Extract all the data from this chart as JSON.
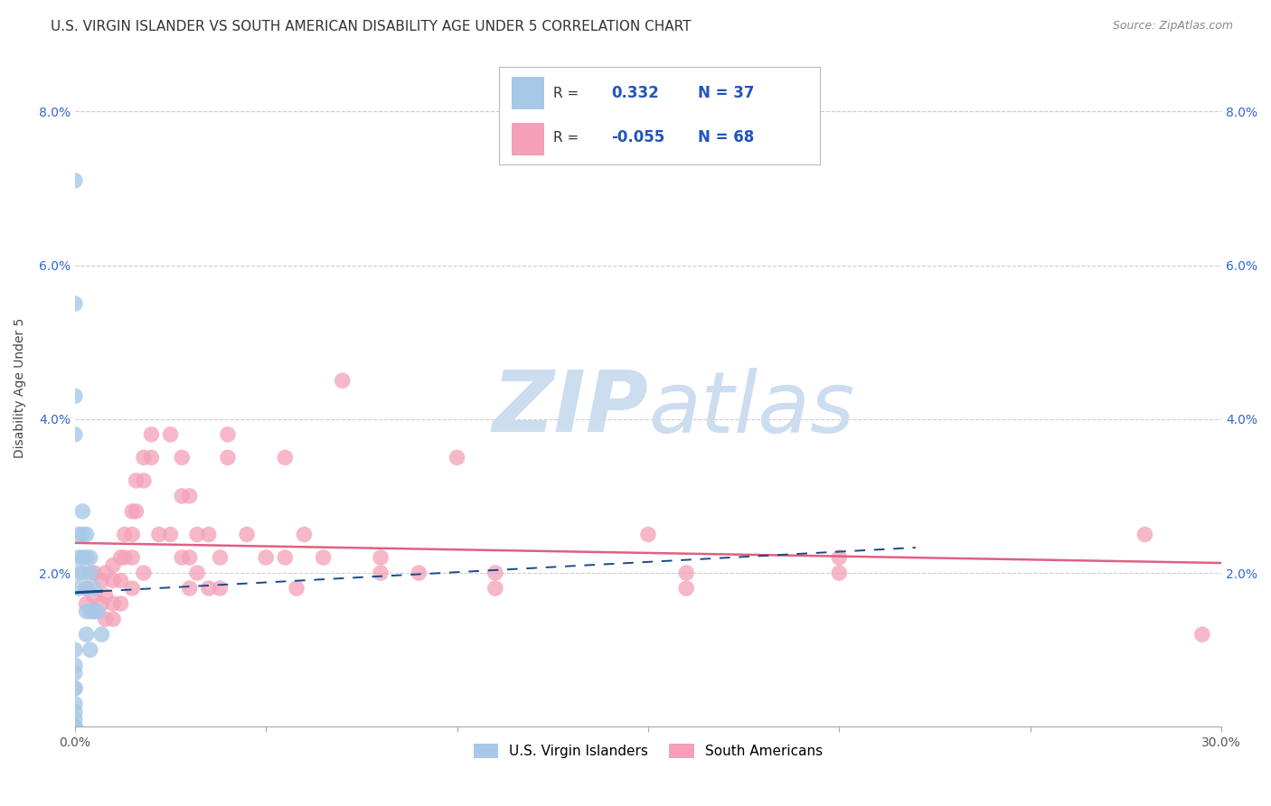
{
  "title": "U.S. VIRGIN ISLANDER VS SOUTH AMERICAN DISABILITY AGE UNDER 5 CORRELATION CHART",
  "source": "Source: ZipAtlas.com",
  "ylabel": "Disability Age Under 5",
  "xlim": [
    0.0,
    0.3
  ],
  "ylim": [
    0.0,
    0.088
  ],
  "x_ticks": [
    0.0,
    0.05,
    0.1,
    0.15,
    0.2,
    0.25,
    0.3
  ],
  "y_ticks": [
    0.0,
    0.02,
    0.04,
    0.06,
    0.08
  ],
  "legend_entries": [
    "U.S. Virgin Islanders",
    "South Americans"
  ],
  "R_blue": "0.332",
  "N_blue": "37",
  "R_pink": "-0.055",
  "N_pink": "68",
  "blue_color": "#a8c8e8",
  "pink_color": "#f4a0b8",
  "blue_line_color": "#1a4a8a",
  "pink_line_color": "#e06080",
  "watermark_color": "#ccddf0",
  "bg_color": "#ffffff",
  "grid_color": "#cccccc",
  "blue_scatter": [
    [
      0.0,
      0.071
    ],
    [
      0.0,
      0.055
    ],
    [
      0.0,
      0.043
    ],
    [
      0.0,
      0.038
    ],
    [
      0.0,
      0.01
    ],
    [
      0.0,
      0.008
    ],
    [
      0.0,
      0.007
    ],
    [
      0.0,
      0.005
    ],
    [
      0.0,
      0.005
    ],
    [
      0.0,
      0.003
    ],
    [
      0.0,
      0.002
    ],
    [
      0.0,
      0.001
    ],
    [
      0.0,
      0.0
    ],
    [
      0.0,
      0.0
    ],
    [
      0.0,
      0.0
    ],
    [
      0.0,
      0.0
    ],
    [
      0.001,
      0.025
    ],
    [
      0.001,
      0.022
    ],
    [
      0.001,
      0.02
    ],
    [
      0.001,
      0.018
    ],
    [
      0.002,
      0.028
    ],
    [
      0.002,
      0.025
    ],
    [
      0.002,
      0.022
    ],
    [
      0.002,
      0.02
    ],
    [
      0.003,
      0.025
    ],
    [
      0.003,
      0.022
    ],
    [
      0.003,
      0.018
    ],
    [
      0.003,
      0.015
    ],
    [
      0.003,
      0.012
    ],
    [
      0.004,
      0.022
    ],
    [
      0.004,
      0.02
    ],
    [
      0.004,
      0.015
    ],
    [
      0.004,
      0.01
    ],
    [
      0.005,
      0.018
    ],
    [
      0.005,
      0.015
    ],
    [
      0.006,
      0.015
    ],
    [
      0.007,
      0.012
    ]
  ],
  "pink_scatter": [
    [
      0.003,
      0.018
    ],
    [
      0.003,
      0.016
    ],
    [
      0.005,
      0.02
    ],
    [
      0.005,
      0.017
    ],
    [
      0.005,
      0.015
    ],
    [
      0.007,
      0.019
    ],
    [
      0.007,
      0.016
    ],
    [
      0.008,
      0.02
    ],
    [
      0.008,
      0.017
    ],
    [
      0.008,
      0.014
    ],
    [
      0.01,
      0.021
    ],
    [
      0.01,
      0.019
    ],
    [
      0.01,
      0.016
    ],
    [
      0.01,
      0.014
    ],
    [
      0.012,
      0.022
    ],
    [
      0.012,
      0.019
    ],
    [
      0.012,
      0.016
    ],
    [
      0.013,
      0.025
    ],
    [
      0.013,
      0.022
    ],
    [
      0.015,
      0.028
    ],
    [
      0.015,
      0.025
    ],
    [
      0.015,
      0.022
    ],
    [
      0.015,
      0.018
    ],
    [
      0.016,
      0.032
    ],
    [
      0.016,
      0.028
    ],
    [
      0.018,
      0.035
    ],
    [
      0.018,
      0.032
    ],
    [
      0.018,
      0.02
    ],
    [
      0.02,
      0.038
    ],
    [
      0.02,
      0.035
    ],
    [
      0.022,
      0.025
    ],
    [
      0.025,
      0.038
    ],
    [
      0.025,
      0.025
    ],
    [
      0.028,
      0.035
    ],
    [
      0.028,
      0.03
    ],
    [
      0.028,
      0.022
    ],
    [
      0.03,
      0.03
    ],
    [
      0.03,
      0.022
    ],
    [
      0.03,
      0.018
    ],
    [
      0.032,
      0.025
    ],
    [
      0.032,
      0.02
    ],
    [
      0.035,
      0.025
    ],
    [
      0.035,
      0.018
    ],
    [
      0.038,
      0.022
    ],
    [
      0.038,
      0.018
    ],
    [
      0.04,
      0.038
    ],
    [
      0.04,
      0.035
    ],
    [
      0.045,
      0.025
    ],
    [
      0.05,
      0.022
    ],
    [
      0.055,
      0.035
    ],
    [
      0.055,
      0.022
    ],
    [
      0.058,
      0.018
    ],
    [
      0.06,
      0.025
    ],
    [
      0.065,
      0.022
    ],
    [
      0.07,
      0.045
    ],
    [
      0.08,
      0.022
    ],
    [
      0.08,
      0.02
    ],
    [
      0.09,
      0.02
    ],
    [
      0.1,
      0.035
    ],
    [
      0.11,
      0.02
    ],
    [
      0.11,
      0.018
    ],
    [
      0.15,
      0.025
    ],
    [
      0.16,
      0.02
    ],
    [
      0.16,
      0.018
    ],
    [
      0.2,
      0.022
    ],
    [
      0.2,
      0.02
    ],
    [
      0.28,
      0.025
    ],
    [
      0.295,
      0.012
    ]
  ]
}
